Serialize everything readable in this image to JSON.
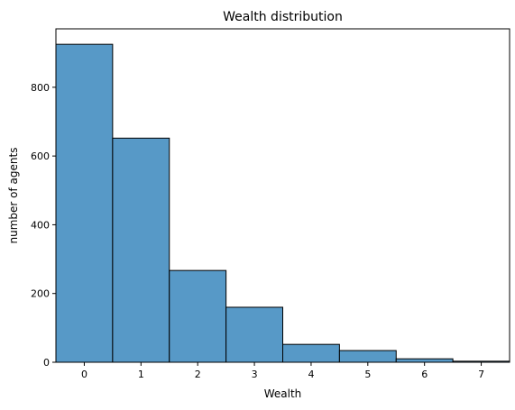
{
  "chart_data": {
    "type": "bar",
    "title": "Wealth distribution",
    "xlabel": "Wealth",
    "ylabel": "number of agents",
    "categories": [
      "0",
      "1",
      "2",
      "3",
      "4",
      "5",
      "6",
      "7"
    ],
    "values": [
      925,
      652,
      267,
      160,
      52,
      34,
      10,
      3
    ],
    "xlim": [
      -0.5,
      7.5
    ],
    "ylim": [
      0,
      970
    ],
    "yticks": [
      0,
      200,
      400,
      600,
      800
    ],
    "grid": false,
    "bar_color": "#5799c7",
    "edge_color": "#000000"
  }
}
